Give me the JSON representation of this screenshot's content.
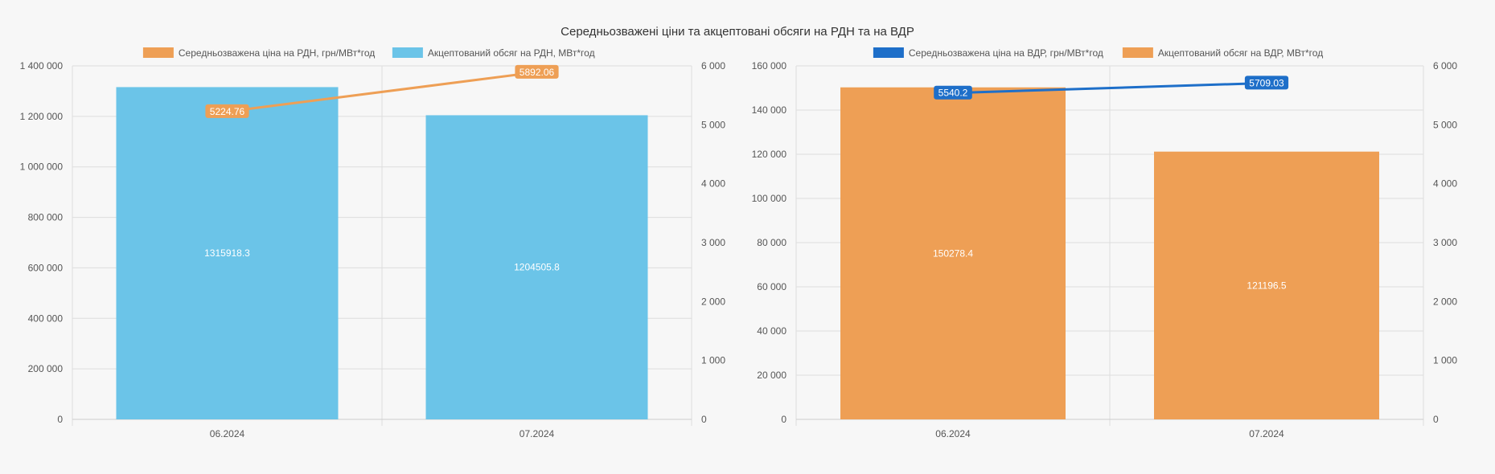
{
  "title": "Середньозважені ціни та акцептовані обсяги на РДН та на ВДР",
  "colors": {
    "orange": "#ee9f55",
    "lightblue": "#6bc4e8",
    "darkblue": "#1e6fc9"
  },
  "chart_data": [
    {
      "type": "bar",
      "categories": [
        "06.2024",
        "07.2024"
      ],
      "series": [
        {
          "name": "Середньозважена ціна на РДН, грн/МВт*год",
          "type": "line",
          "axis": "right",
          "color": "#ee9f55",
          "values": [
            5224.76,
            5892.06
          ],
          "labels": [
            "5224.76",
            "5892.06"
          ]
        },
        {
          "name": "Акцептований обсяг на РДН, МВт*год",
          "type": "bar",
          "axis": "left",
          "color": "#6bc4e8",
          "values": [
            1315918.3,
            1204505.8
          ],
          "labels": [
            "1315918.3",
            "1204505.8"
          ]
        }
      ],
      "y_left": {
        "min": 0,
        "max": 1400000,
        "ticks": [
          "0",
          "200 000",
          "400 000",
          "600 000",
          "800 000",
          "1 000 000",
          "1 200 000",
          "1 400 000"
        ]
      },
      "y_right": {
        "min": 0,
        "max": 6000,
        "ticks": [
          "0",
          "1 000",
          "2 000",
          "3 000",
          "4 000",
          "5 000",
          "6 000"
        ]
      },
      "legend_position": "top",
      "grid": true
    },
    {
      "type": "bar",
      "categories": [
        "06.2024",
        "07.2024"
      ],
      "series": [
        {
          "name": "Середньозважена ціна на ВДР, грн/МВт*год",
          "type": "line",
          "axis": "right",
          "color": "#1e6fc9",
          "values": [
            5540.2,
            5709.03
          ],
          "labels": [
            "5540.2",
            "5709.03"
          ]
        },
        {
          "name": "Акцептований обсяг на ВДР, МВт*год",
          "type": "bar",
          "axis": "left",
          "color": "#ee9f55",
          "values": [
            150278.4,
            121196.5
          ],
          "labels": [
            "150278.4",
            "121196.5"
          ]
        }
      ],
      "y_left": {
        "min": 0,
        "max": 160000,
        "ticks": [
          "0",
          "20 000",
          "40 000",
          "60 000",
          "80 000",
          "100 000",
          "120 000",
          "140 000",
          "160 000"
        ]
      },
      "y_right": {
        "min": 0,
        "max": 6000,
        "ticks": [
          "0",
          "1 000",
          "2 000",
          "3 000",
          "4 000",
          "5 000",
          "6 000"
        ]
      },
      "legend_position": "top",
      "grid": true
    }
  ]
}
